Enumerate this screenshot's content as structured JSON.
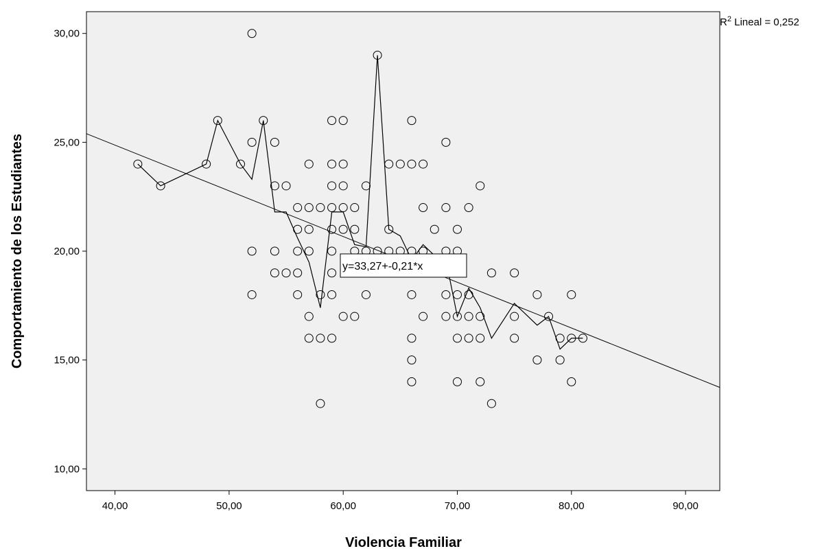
{
  "chart_data": {
    "type": "scatter",
    "xlabel": "Violencia Familiar",
    "ylabel": "Comportamiento de los Estudiantes",
    "xlim": [
      37.5,
      93
    ],
    "ylim": [
      9,
      31
    ],
    "x_ticks": [
      40,
      50,
      60,
      70,
      80,
      90
    ],
    "y_ticks": [
      10,
      15,
      20,
      25,
      30
    ],
    "x_tick_labels": [
      "40,00",
      "50,00",
      "60,00",
      "70,00",
      "80,00",
      "90,00"
    ],
    "y_tick_labels": [
      "10,00",
      "15,00",
      "20,00",
      "25,00",
      "30,00"
    ],
    "grid": false,
    "background_color": "#f0f0f0",
    "r2_label": "R",
    "r2_superscript": "2",
    "r2_value_text": " Lineal = 0,252",
    "equation_label": "y=33,27+-0,21*x",
    "fit_line": {
      "intercept": 33.27,
      "slope": -0.21
    },
    "points": [
      [
        42,
        24
      ],
      [
        44,
        23
      ],
      [
        48,
        24
      ],
      [
        49,
        26
      ],
      [
        51,
        24
      ],
      [
        52,
        30
      ],
      [
        52,
        25
      ],
      [
        52,
        20
      ],
      [
        52,
        18
      ],
      [
        53,
        26
      ],
      [
        54,
        25
      ],
      [
        54,
        23
      ],
      [
        54,
        20
      ],
      [
        54,
        19
      ],
      [
        55,
        23
      ],
      [
        55,
        19
      ],
      [
        56,
        22
      ],
      [
        56,
        21
      ],
      [
        56,
        20
      ],
      [
        56,
        19
      ],
      [
        56,
        18
      ],
      [
        57,
        24
      ],
      [
        57,
        22
      ],
      [
        57,
        21
      ],
      [
        57,
        20
      ],
      [
        57,
        17
      ],
      [
        57,
        16
      ],
      [
        58,
        22
      ],
      [
        58,
        18
      ],
      [
        58,
        16
      ],
      [
        58,
        13
      ],
      [
        59,
        26
      ],
      [
        59,
        24
      ],
      [
        59,
        23
      ],
      [
        59,
        22
      ],
      [
        59,
        21
      ],
      [
        59,
        20
      ],
      [
        59,
        19
      ],
      [
        59,
        18
      ],
      [
        59,
        16
      ],
      [
        60,
        26
      ],
      [
        60,
        24
      ],
      [
        60,
        23
      ],
      [
        60,
        22
      ],
      [
        60,
        21
      ],
      [
        60,
        17
      ],
      [
        61,
        22
      ],
      [
        61,
        21
      ],
      [
        61,
        20
      ],
      [
        61,
        17
      ],
      [
        62,
        23
      ],
      [
        62,
        20
      ],
      [
        62,
        19
      ],
      [
        62,
        18
      ],
      [
        63,
        29
      ],
      [
        63,
        20
      ],
      [
        64,
        24
      ],
      [
        64,
        21
      ],
      [
        64,
        20
      ],
      [
        65,
        24
      ],
      [
        65,
        20
      ],
      [
        65,
        19
      ],
      [
        66,
        26
      ],
      [
        66,
        24
      ],
      [
        66,
        20
      ],
      [
        66,
        19
      ],
      [
        66,
        18
      ],
      [
        66,
        16
      ],
      [
        66,
        15
      ],
      [
        66,
        14
      ],
      [
        67,
        24
      ],
      [
        67,
        22
      ],
      [
        67,
        20
      ],
      [
        67,
        19
      ],
      [
        67,
        17
      ],
      [
        68,
        21
      ],
      [
        68,
        19
      ],
      [
        69,
        25
      ],
      [
        69,
        22
      ],
      [
        69,
        20
      ],
      [
        69,
        19
      ],
      [
        69,
        18
      ],
      [
        69,
        17
      ],
      [
        70,
        21
      ],
      [
        70,
        20
      ],
      [
        70,
        18
      ],
      [
        70,
        17
      ],
      [
        70,
        16
      ],
      [
        70,
        14
      ],
      [
        71,
        22
      ],
      [
        71,
        18
      ],
      [
        71,
        17
      ],
      [
        71,
        16
      ],
      [
        72,
        23
      ],
      [
        72,
        17
      ],
      [
        72,
        16
      ],
      [
        72,
        14
      ],
      [
        73,
        19
      ],
      [
        73,
        13
      ],
      [
        75,
        19
      ],
      [
        75,
        17
      ],
      [
        75,
        16
      ],
      [
        77,
        18
      ],
      [
        77,
        15
      ],
      [
        78,
        17
      ],
      [
        79,
        16
      ],
      [
        79,
        15
      ],
      [
        80,
        18
      ],
      [
        80,
        16
      ],
      [
        80,
        14
      ],
      [
        81,
        16
      ]
    ],
    "loess_line": [
      [
        42,
        24
      ],
      [
        44,
        23
      ],
      [
        48,
        24
      ],
      [
        49,
        26
      ],
      [
        51,
        24
      ],
      [
        52,
        23.3
      ],
      [
        53,
        26
      ],
      [
        54,
        21.8
      ],
      [
        55,
        21.8
      ],
      [
        56,
        20.6
      ],
      [
        57,
        19.5
      ],
      [
        58,
        17.4
      ],
      [
        59,
        21.8
      ],
      [
        60,
        21.8
      ],
      [
        61,
        20.3
      ],
      [
        62,
        20.2
      ],
      [
        63,
        29
      ],
      [
        64,
        21
      ],
      [
        65,
        20.7
      ],
      [
        66,
        19.6
      ],
      [
        67,
        20.3
      ],
      [
        68,
        19.8
      ],
      [
        69,
        19.6
      ],
      [
        70,
        17
      ],
      [
        71,
        18.3
      ],
      [
        72,
        17.4
      ],
      [
        73,
        16
      ],
      [
        75,
        17.6
      ],
      [
        77,
        16.6
      ],
      [
        78,
        17
      ],
      [
        79,
        15.5
      ],
      [
        80,
        16
      ],
      [
        81,
        16
      ]
    ]
  }
}
